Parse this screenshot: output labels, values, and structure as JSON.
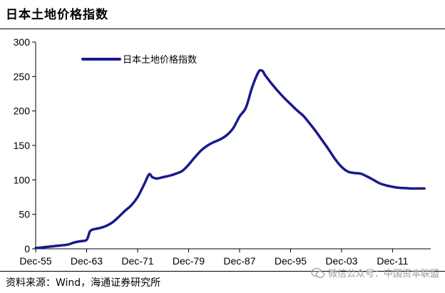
{
  "title": "日本土地价格指数",
  "source": "资料来源：Wind，海通证券研究所",
  "watermark": "微信公众号：中国资本联盟",
  "colors": {
    "line": "#1a1a8c",
    "axis": "#000000"
  },
  "chart_data": {
    "type": "line",
    "title": "日本土地价格指数",
    "xlabel": "",
    "ylabel": "",
    "ylim": [
      0,
      300
    ],
    "yticks": [
      0,
      50,
      100,
      150,
      200,
      250,
      300
    ],
    "xlim": [
      1955,
      2017
    ],
    "xtick_labels": [
      "Dec-55",
      "Dec-63",
      "Dec-71",
      "Dec-79",
      "Dec-87",
      "Dec-95",
      "Dec-03",
      "Dec-11"
    ],
    "xtick_years": [
      1955,
      1963,
      1971,
      1979,
      1987,
      1995,
      2003,
      2011
    ],
    "legend_position": "top-left",
    "grid": false,
    "series": [
      {
        "name": "日本土地价格指数",
        "points": [
          [
            1955,
            1
          ],
          [
            1956,
            2
          ],
          [
            1957,
            3
          ],
          [
            1958,
            4
          ],
          [
            1959,
            5
          ],
          [
            1960,
            6
          ],
          [
            1961,
            9
          ],
          [
            1962,
            11
          ],
          [
            1963,
            13
          ],
          [
            1963.5,
            25
          ],
          [
            1964,
            28
          ],
          [
            1965,
            30
          ],
          [
            1966,
            33
          ],
          [
            1967,
            38
          ],
          [
            1968,
            46
          ],
          [
            1969,
            55
          ],
          [
            1970,
            63
          ],
          [
            1971,
            75
          ],
          [
            1972,
            93
          ],
          [
            1972.8,
            108
          ],
          [
            1973.3,
            104
          ],
          [
            1974,
            102
          ],
          [
            1975,
            104
          ],
          [
            1976,
            106
          ],
          [
            1977,
            109
          ],
          [
            1978,
            113
          ],
          [
            1979,
            122
          ],
          [
            1980,
            133
          ],
          [
            1981,
            143
          ],
          [
            1982,
            150
          ],
          [
            1983,
            155
          ],
          [
            1984,
            159
          ],
          [
            1985,
            165
          ],
          [
            1986,
            175
          ],
          [
            1987,
            192
          ],
          [
            1988,
            205
          ],
          [
            1989,
            235
          ],
          [
            1990,
            257
          ],
          [
            1990.6,
            258
          ],
          [
            1991,
            252
          ],
          [
            1992,
            240
          ],
          [
            1993,
            229
          ],
          [
            1994,
            219
          ],
          [
            1995,
            210
          ],
          [
            1996,
            201
          ],
          [
            1997,
            193
          ],
          [
            1998,
            182
          ],
          [
            1999,
            170
          ],
          [
            2000,
            157
          ],
          [
            2001,
            144
          ],
          [
            2002,
            130
          ],
          [
            2003,
            119
          ],
          [
            2004,
            112
          ],
          [
            2005,
            110
          ],
          [
            2006,
            109
          ],
          [
            2007,
            105
          ],
          [
            2008,
            100
          ],
          [
            2009,
            95
          ],
          [
            2010,
            92
          ],
          [
            2011,
            90
          ],
          [
            2012,
            88.5
          ],
          [
            2013,
            88
          ],
          [
            2014,
            87.5
          ],
          [
            2015,
            87.5
          ],
          [
            2016,
            87.5
          ]
        ]
      }
    ]
  }
}
